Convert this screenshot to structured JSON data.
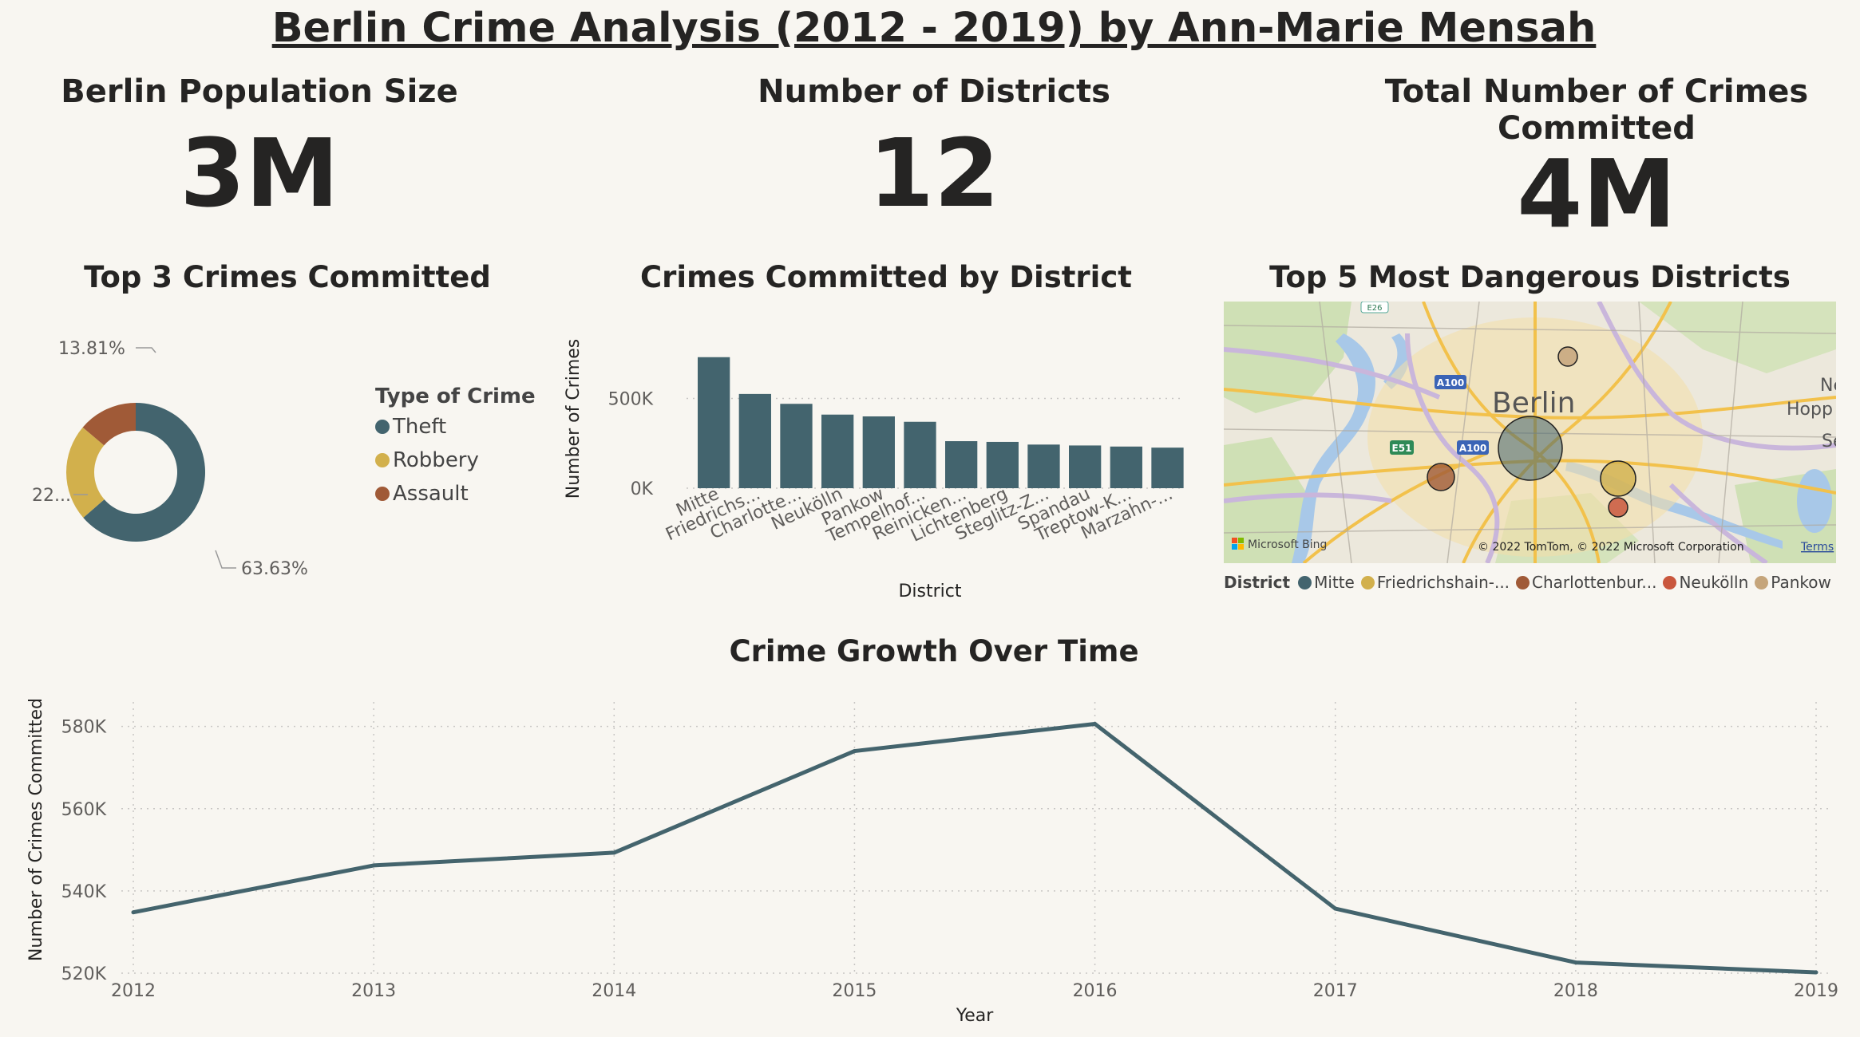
{
  "title": "Berlin Crime Analysis (2012 - 2019) by Ann-Marie Mensah",
  "kpis": {
    "population": {
      "label": "Berlin Population Size",
      "value": "3M"
    },
    "districts": {
      "label": "Number of Districts",
      "value": "12"
    },
    "crimes": {
      "label": "Total Number of Crimes Committed",
      "value": "4M"
    }
  },
  "colors": {
    "theft": "#43646e",
    "robbery": "#d2b04c",
    "assault": "#a05a37",
    "neukolln": "#c9573d",
    "pankow": "#c5a57b",
    "background": "#f8f6f1",
    "line": "#44646d"
  },
  "chart_data": [
    {
      "type": "pie",
      "title": "Top 3 Crimes Committed",
      "legend_title": "Type of Crime",
      "categories": [
        "Theft",
        "Robbery",
        "Assault"
      ],
      "values": [
        63.63,
        22.56,
        13.81
      ],
      "data_labels": [
        "63.63%",
        "22...",
        "13.81%"
      ]
    },
    {
      "type": "bar",
      "title": "Crimes Committed by District",
      "xlabel": "District",
      "ylabel": "Number of Crimes",
      "ylim": [
        0,
        800000
      ],
      "ytick_values": [
        0,
        500000
      ],
      "ytick_labels": [
        "0K",
        "500K"
      ],
      "categories": [
        "Mitte",
        "Friedrichs...",
        "Charlotte...",
        "Neukölln",
        "Pankow",
        "Tempelhof...",
        "Reinicken...",
        "Lichtenberg",
        "Steglitz-Z...",
        "Spandau",
        "Treptow-K...",
        "Marzahn-..."
      ],
      "values": [
        730000,
        525000,
        470000,
        410000,
        400000,
        370000,
        262000,
        258000,
        243000,
        238000,
        232000,
        226000
      ]
    },
    {
      "type": "line",
      "title": "Crime Growth Over Time",
      "xlabel": "Year",
      "ylabel": "Number of Crimes Committed",
      "x": [
        2012,
        2013,
        2014,
        2015,
        2016,
        2017,
        2018,
        2019
      ],
      "values": [
        534800,
        546200,
        549300,
        574000,
        580600,
        535700,
        522600,
        520200
      ],
      "ylim": [
        520000,
        584000
      ],
      "ytick_values": [
        520000,
        540000,
        560000,
        580000
      ],
      "ytick_labels": [
        "520K",
        "540K",
        "560K",
        "580K"
      ],
      "grid": true
    },
    {
      "type": "scatter",
      "title": "Top 5 Most Dangerous Districts",
      "legend_title": "District",
      "categories": [
        "Mitte",
        "Friedrichshain-...",
        "Charlottenbur...",
        "Neukölln",
        "Pankow"
      ],
      "values": [
        730000,
        525000,
        470000,
        410000,
        400000
      ]
    }
  ],
  "map": {
    "city_label": "Berlin",
    "labels": [
      "A100",
      "A100",
      "E51",
      "Ne",
      "Hopp",
      "Se",
      "E26"
    ],
    "bing_label": "Microsoft Bing",
    "copyright": "© 2022 TomTom, © 2022 Microsoft Corporation",
    "terms": "Terms"
  }
}
